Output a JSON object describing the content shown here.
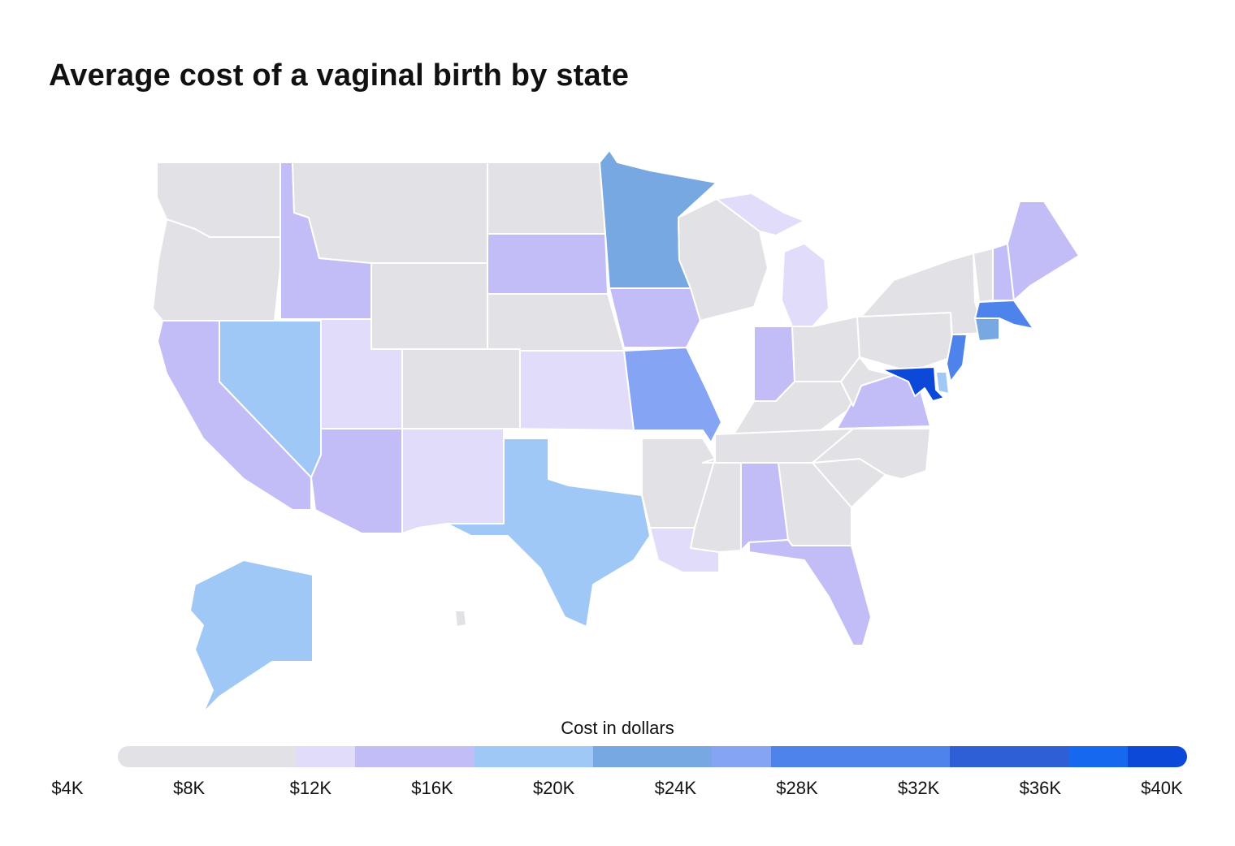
{
  "title": "Average cost of a vaginal birth by state",
  "legend": {
    "title": "Cost in dollars",
    "ticks": [
      "$4K",
      "$8K",
      "$12K",
      "$16K",
      "$20K",
      "$24K",
      "$28K",
      "$32K",
      "$36K",
      "$40K"
    ],
    "min": 4000,
    "max": 40000,
    "bins": [
      {
        "from": 4000,
        "to": 10000,
        "color": "#e2e2e6"
      },
      {
        "from": 10000,
        "to": 12000,
        "color": "#e0dcf9"
      },
      {
        "from": 12000,
        "to": 16000,
        "color": "#c2bdf6"
      },
      {
        "from": 16000,
        "to": 20000,
        "color": "#9fc8f6"
      },
      {
        "from": 20000,
        "to": 24000,
        "color": "#78a8e2"
      },
      {
        "from": 24000,
        "to": 26000,
        "color": "#86a4f4"
      },
      {
        "from": 26000,
        "to": 32000,
        "color": "#4d83ea"
      },
      {
        "from": 32000,
        "to": 36000,
        "color": "#2f5fd6"
      },
      {
        "from": 36000,
        "to": 38000,
        "color": "#1669ee"
      },
      {
        "from": 38000,
        "to": 40000,
        "color": "#0d49d8"
      }
    ]
  },
  "states": [
    {
      "id": "wa",
      "color": "#e2e2e6"
    },
    {
      "id": "or",
      "color": "#e2e2e6"
    },
    {
      "id": "id",
      "color": "#c2bdf6"
    },
    {
      "id": "mt",
      "color": "#e2e2e6"
    },
    {
      "id": "wy",
      "color": "#e2e2e6"
    },
    {
      "id": "ca",
      "color": "#c2bdf6"
    },
    {
      "id": "nv",
      "color": "#9fc8f6"
    },
    {
      "id": "ut",
      "color": "#e0dcf9"
    },
    {
      "id": "az",
      "color": "#c2bdf6"
    },
    {
      "id": "co",
      "color": "#e2e2e6"
    },
    {
      "id": "nm",
      "color": "#e0dcf9"
    },
    {
      "id": "nd",
      "color": "#e2e2e6"
    },
    {
      "id": "sd",
      "color": "#c2bdf6"
    },
    {
      "id": "ne",
      "color": "#e2e2e6"
    },
    {
      "id": "ks",
      "color": "#e0dcf9"
    },
    {
      "id": "ok",
      "color": "#ffffff"
    },
    {
      "id": "tx",
      "color": "#9fc8f6"
    },
    {
      "id": "mn",
      "color": "#78a8e2"
    },
    {
      "id": "ia",
      "color": "#c2bdf6"
    },
    {
      "id": "mo",
      "color": "#86a4f4"
    },
    {
      "id": "ar",
      "color": "#e2e2e6"
    },
    {
      "id": "la",
      "color": "#e0dcf9"
    },
    {
      "id": "wi",
      "color": "#e2e2e6"
    },
    {
      "id": "il",
      "color": "#ffffff"
    },
    {
      "id": "mi",
      "color": "#e0dcf9"
    },
    {
      "id": "in",
      "color": "#c2bdf6"
    },
    {
      "id": "oh",
      "color": "#e2e2e6"
    },
    {
      "id": "ky",
      "color": "#e2e2e6"
    },
    {
      "id": "tn",
      "color": "#e2e2e6"
    },
    {
      "id": "ms",
      "color": "#e2e2e6"
    },
    {
      "id": "al",
      "color": "#c2bdf6"
    },
    {
      "id": "ga",
      "color": "#e2e2e6"
    },
    {
      "id": "fl",
      "color": "#c2bdf6"
    },
    {
      "id": "sc",
      "color": "#e2e2e6"
    },
    {
      "id": "nc",
      "color": "#e2e2e6"
    },
    {
      "id": "va",
      "color": "#c2bdf6"
    },
    {
      "id": "wv",
      "color": "#e2e2e6"
    },
    {
      "id": "pa",
      "color": "#e2e2e6"
    },
    {
      "id": "ny",
      "color": "#e2e2e6"
    },
    {
      "id": "nj",
      "color": "#4d83ea"
    },
    {
      "id": "md",
      "color": "#0d49d8"
    },
    {
      "id": "de",
      "color": "#9fc8f6"
    },
    {
      "id": "ct",
      "color": "#78a8e2"
    },
    {
      "id": "ma",
      "color": "#4d83ea"
    },
    {
      "id": "vt",
      "color": "#e2e2e6"
    },
    {
      "id": "nh",
      "color": "#c2bdf6"
    },
    {
      "id": "me",
      "color": "#c2bdf6"
    },
    {
      "id": "ak",
      "color": "#9fc8f6"
    },
    {
      "id": "hi",
      "color": "#e2e2e6"
    }
  ]
}
